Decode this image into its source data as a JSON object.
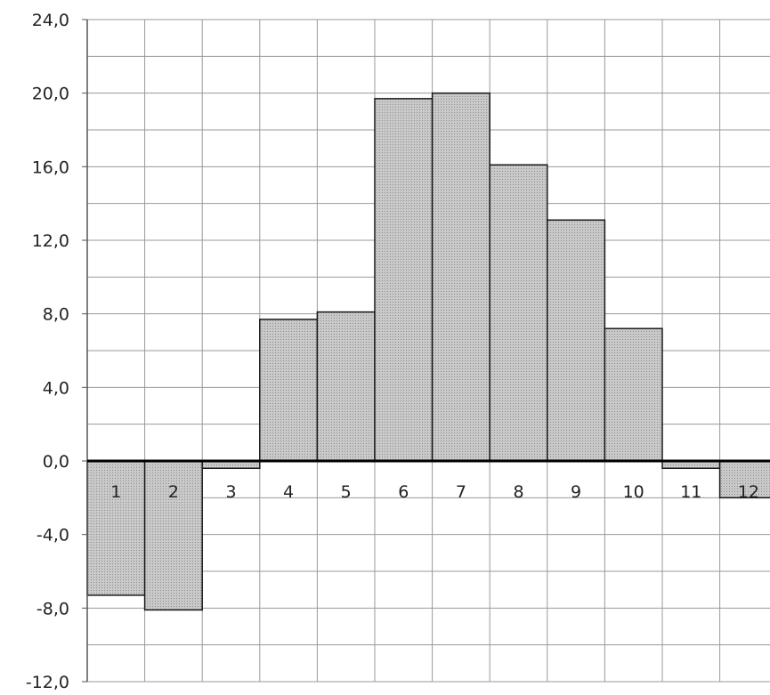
{
  "chart_data": {
    "type": "bar",
    "categories": [
      "1",
      "2",
      "3",
      "4",
      "5",
      "6",
      "7",
      "8",
      "9",
      "10",
      "11",
      "12"
    ],
    "values": [
      -7.3,
      -8.1,
      -0.4,
      7.7,
      8.1,
      19.7,
      20.0,
      16.1,
      13.1,
      7.2,
      -0.4,
      -2.0
    ],
    "title": "",
    "xlabel": "",
    "ylabel": "",
    "ylim": [
      -12,
      24
    ],
    "ytick_values": [
      -12,
      -8,
      -4,
      0,
      4,
      8,
      12,
      16,
      20,
      24
    ],
    "ytick_labels": [
      "-12,0",
      "-8,0",
      "-4,0",
      "0,0",
      "4,0",
      "8,0",
      "12,0",
      "16,0",
      "20,0",
      "24,0"
    ],
    "minor_grid_step": 2,
    "grid": true,
    "legend": "none",
    "colors": {
      "bar_fill": "#c4c4c4",
      "bar_stroke": "#1a1a1a",
      "grid": "#9a9a9a",
      "zero_line": "#000000"
    }
  }
}
